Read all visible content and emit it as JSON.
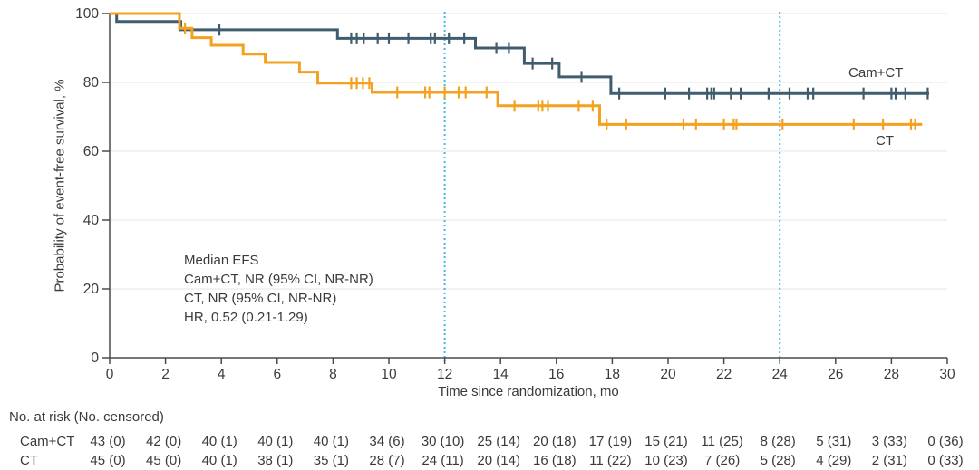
{
  "chart_data": {
    "type": "line",
    "subtype": "kaplan-meier-step",
    "xlabel": "Time since randomization, mo",
    "ylabel": "Probability of event-free survival, %",
    "xlim": [
      0,
      30
    ],
    "ylim": [
      0,
      100
    ],
    "xticks": [
      0,
      2,
      4,
      6,
      8,
      10,
      12,
      14,
      16,
      18,
      20,
      22,
      24,
      26,
      28,
      30
    ],
    "yticks": [
      0,
      20,
      40,
      60,
      80,
      100
    ],
    "grid": "horizontal-light",
    "legend_position": "curve-end-labels",
    "reference_lines_x": [
      12,
      24
    ],
    "annotation_lines": [
      "Median EFS",
      "Cam+CT, NR (95% CI, NR-NR)",
      "CT, NR (95% CI, NR-NR)",
      "HR, 0.52 (0.21-1.29)"
    ],
    "curve_labels": {
      "cam_ct": "Cam+CT",
      "ct": "CT"
    },
    "series": [
      {
        "name": "Cam+CT",
        "color": "#3f5d6e",
        "steps": [
          [
            0,
            100
          ],
          [
            0.25,
            100
          ],
          [
            0.25,
            97.7
          ],
          [
            2.55,
            97.7
          ],
          [
            2.55,
            95.3
          ],
          [
            8.16,
            95.3
          ],
          [
            8.16,
            92.8
          ],
          [
            13.1,
            92.8
          ],
          [
            13.1,
            90.0
          ],
          [
            14.85,
            90.0
          ],
          [
            14.85,
            85.5
          ],
          [
            16.1,
            85.5
          ],
          [
            16.1,
            81.6
          ],
          [
            17.95,
            81.6
          ],
          [
            17.95,
            76.8
          ],
          [
            29.35,
            76.8
          ]
        ],
        "censor_marks": [
          [
            3.93,
            95.3
          ],
          [
            8.65,
            92.8
          ],
          [
            8.85,
            92.8
          ],
          [
            9.1,
            92.8
          ],
          [
            9.6,
            92.8
          ],
          [
            10.0,
            92.8
          ],
          [
            10.7,
            92.8
          ],
          [
            11.5,
            92.8
          ],
          [
            11.65,
            92.8
          ],
          [
            12.15,
            92.8
          ],
          [
            12.7,
            92.8
          ],
          [
            13.85,
            90.0
          ],
          [
            14.3,
            90.0
          ],
          [
            15.15,
            85.5
          ],
          [
            15.85,
            85.5
          ],
          [
            16.9,
            81.6
          ],
          [
            18.25,
            76.8
          ],
          [
            19.9,
            76.8
          ],
          [
            20.75,
            76.8
          ],
          [
            21.4,
            76.8
          ],
          [
            21.55,
            76.8
          ],
          [
            21.65,
            76.8
          ],
          [
            22.25,
            76.8
          ],
          [
            22.6,
            76.8
          ],
          [
            23.6,
            76.8
          ],
          [
            24.35,
            76.8
          ],
          [
            25.0,
            76.8
          ],
          [
            25.2,
            76.8
          ],
          [
            27.0,
            76.8
          ],
          [
            28.0,
            76.8
          ],
          [
            28.15,
            76.8
          ],
          [
            28.5,
            76.8
          ],
          [
            29.3,
            76.8
          ]
        ]
      },
      {
        "name": "CT",
        "color": "#f3a11e",
        "steps": [
          [
            0,
            100
          ],
          [
            2.5,
            100
          ],
          [
            2.5,
            95.7
          ],
          [
            2.95,
            95.7
          ],
          [
            2.95,
            93.0
          ],
          [
            3.64,
            93.0
          ],
          [
            3.64,
            90.8
          ],
          [
            4.78,
            90.8
          ],
          [
            4.78,
            88.2
          ],
          [
            5.57,
            88.2
          ],
          [
            5.57,
            85.8
          ],
          [
            6.8,
            85.8
          ],
          [
            6.8,
            83.0
          ],
          [
            7.45,
            83.0
          ],
          [
            7.45,
            79.8
          ],
          [
            9.4,
            79.8
          ],
          [
            9.4,
            77.1
          ],
          [
            13.9,
            77.1
          ],
          [
            13.9,
            73.2
          ],
          [
            17.55,
            73.2
          ],
          [
            17.55,
            67.8
          ],
          [
            29.1,
            67.8
          ]
        ],
        "censor_marks": [
          [
            2.7,
            95.7
          ],
          [
            8.65,
            79.8
          ],
          [
            8.85,
            79.8
          ],
          [
            9.07,
            79.8
          ],
          [
            9.3,
            79.8
          ],
          [
            10.3,
            77.1
          ],
          [
            11.3,
            77.1
          ],
          [
            11.45,
            77.1
          ],
          [
            12.0,
            77.1
          ],
          [
            12.5,
            77.1
          ],
          [
            12.75,
            77.1
          ],
          [
            13.5,
            77.1
          ],
          [
            14.5,
            73.2
          ],
          [
            15.35,
            73.2
          ],
          [
            15.5,
            73.2
          ],
          [
            15.7,
            73.2
          ],
          [
            16.8,
            73.2
          ],
          [
            17.3,
            73.2
          ],
          [
            17.8,
            67.8
          ],
          [
            18.5,
            67.8
          ],
          [
            20.55,
            67.8
          ],
          [
            21.0,
            67.8
          ],
          [
            22.0,
            67.8
          ],
          [
            22.35,
            67.8
          ],
          [
            22.45,
            67.8
          ],
          [
            24.1,
            67.8
          ],
          [
            26.65,
            67.8
          ],
          [
            27.7,
            67.8
          ],
          [
            28.7,
            67.8
          ],
          [
            28.85,
            67.8
          ]
        ]
      }
    ]
  },
  "risk_table": {
    "title": "No. at risk (No. censored)",
    "times": [
      0,
      2,
      4,
      6,
      8,
      10,
      12,
      14,
      16,
      18,
      20,
      22,
      24,
      26,
      28,
      30
    ],
    "rows": [
      {
        "label": "Cam+CT",
        "values": [
          "43 (0)",
          "42 (0)",
          "40 (1)",
          "40 (1)",
          "40 (1)",
          "34 (6)",
          "30 (10)",
          "25 (14)",
          "20 (18)",
          "17 (19)",
          "15 (21)",
          "11 (25)",
          "8 (28)",
          "5 (31)",
          "3 (33)",
          "0 (36)"
        ]
      },
      {
        "label": "CT",
        "values": [
          "45 (0)",
          "45 (0)",
          "40 (1)",
          "38 (1)",
          "35 (1)",
          "28 (7)",
          "24 (11)",
          "20 (14)",
          "16 (18)",
          "11 (22)",
          "10 (23)",
          "7 (26)",
          "5 (28)",
          "4 (29)",
          "2 (31)",
          "0 (33)"
        ]
      }
    ]
  },
  "colors": {
    "cam_ct": "#3f5d6e",
    "ct": "#f3a11e",
    "reference_line": "#3fb9e6",
    "grid": "#eaeaea",
    "axis": "#4a4a4a",
    "text": "#3a3a3a"
  }
}
